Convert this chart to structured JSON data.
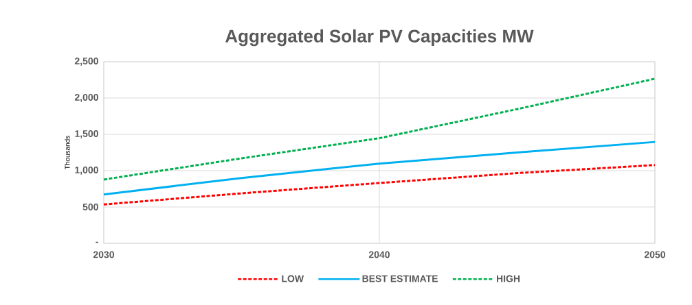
{
  "chart_data": {
    "type": "line",
    "title": "Aggregated Solar PV Capacities MW",
    "ylabel": "Thousands",
    "x": [
      2030,
      2035,
      2040,
      2045,
      2050
    ],
    "series": [
      {
        "name": "LOW",
        "color": "#ff0000",
        "line_style": "dashed",
        "values": [
          535,
          688,
          830,
          966,
          1077
        ]
      },
      {
        "name": "BEST ESTIMATE",
        "color": "#00b0f0",
        "line_style": "solid",
        "values": [
          673,
          899,
          1097,
          1251,
          1395
        ]
      },
      {
        "name": "HIGH",
        "color": "#00b050",
        "line_style": "dashed",
        "values": [
          878,
          1170,
          1447,
          1847,
          2265
        ]
      }
    ],
    "xlim": [
      2030,
      2050
    ],
    "xticks": [
      2030,
      2040,
      2050
    ],
    "ylim": [
      0,
      2500
    ],
    "yticks": [
      {
        "value": 0,
        "label": "-"
      },
      {
        "value": 500,
        "label": "500"
      },
      {
        "value": 1000,
        "label": "1,000"
      },
      {
        "value": 1500,
        "label": "1,500"
      },
      {
        "value": 2000,
        "label": "2,000"
      },
      {
        "value": 2500,
        "label": "2,500"
      }
    ],
    "grid": true,
    "legend": "bottom",
    "marker": "none"
  }
}
